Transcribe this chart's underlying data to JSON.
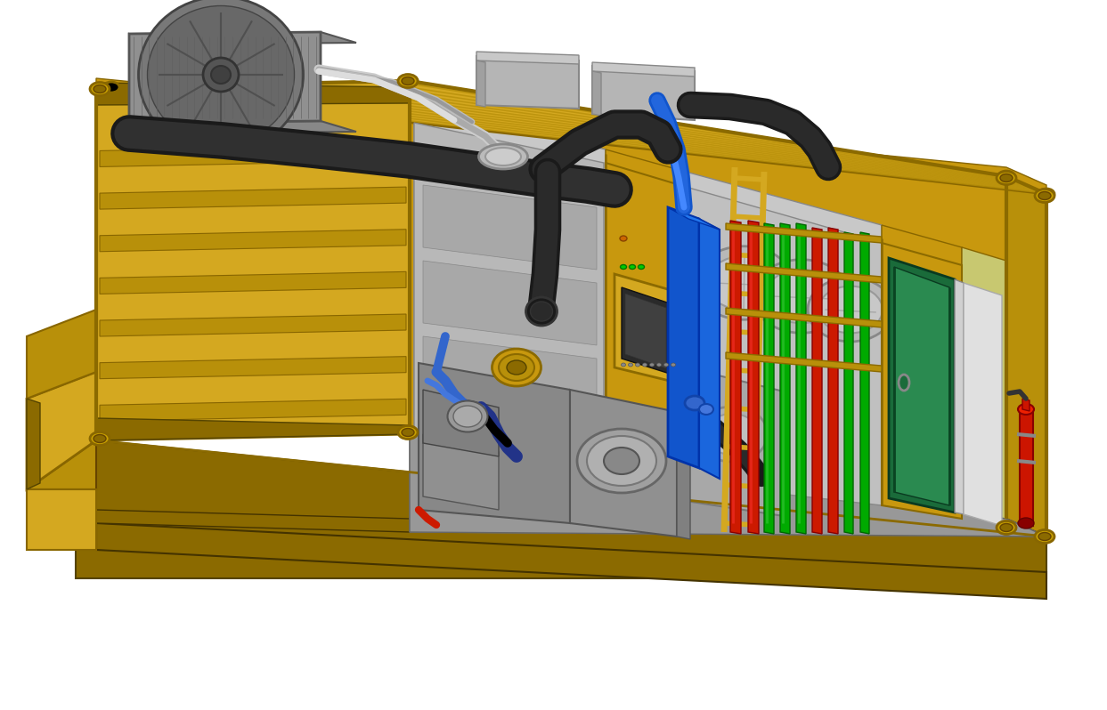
{
  "background_color": "#ffffff",
  "yellow": "#D4A820",
  "yellow_dark": "#B8900A",
  "yellow_shadow": "#8B6A00",
  "yellow_mid": "#C8980E",
  "gray_light": "#C8C8C8",
  "gray_mid": "#A8A8A8",
  "gray_dark": "#787878",
  "gray_interior": "#B0B0B8",
  "green_door": "#1A6B3A",
  "green_door_light": "#2A8A50",
  "pipe_red": "#CC1A00",
  "pipe_green": "#00AA00",
  "pipe_blue": "#1155CC",
  "black": "#111111",
  "fire_red": "#CC1500",
  "figsize": [
    12.43,
    7.98
  ],
  "dpi": 100
}
